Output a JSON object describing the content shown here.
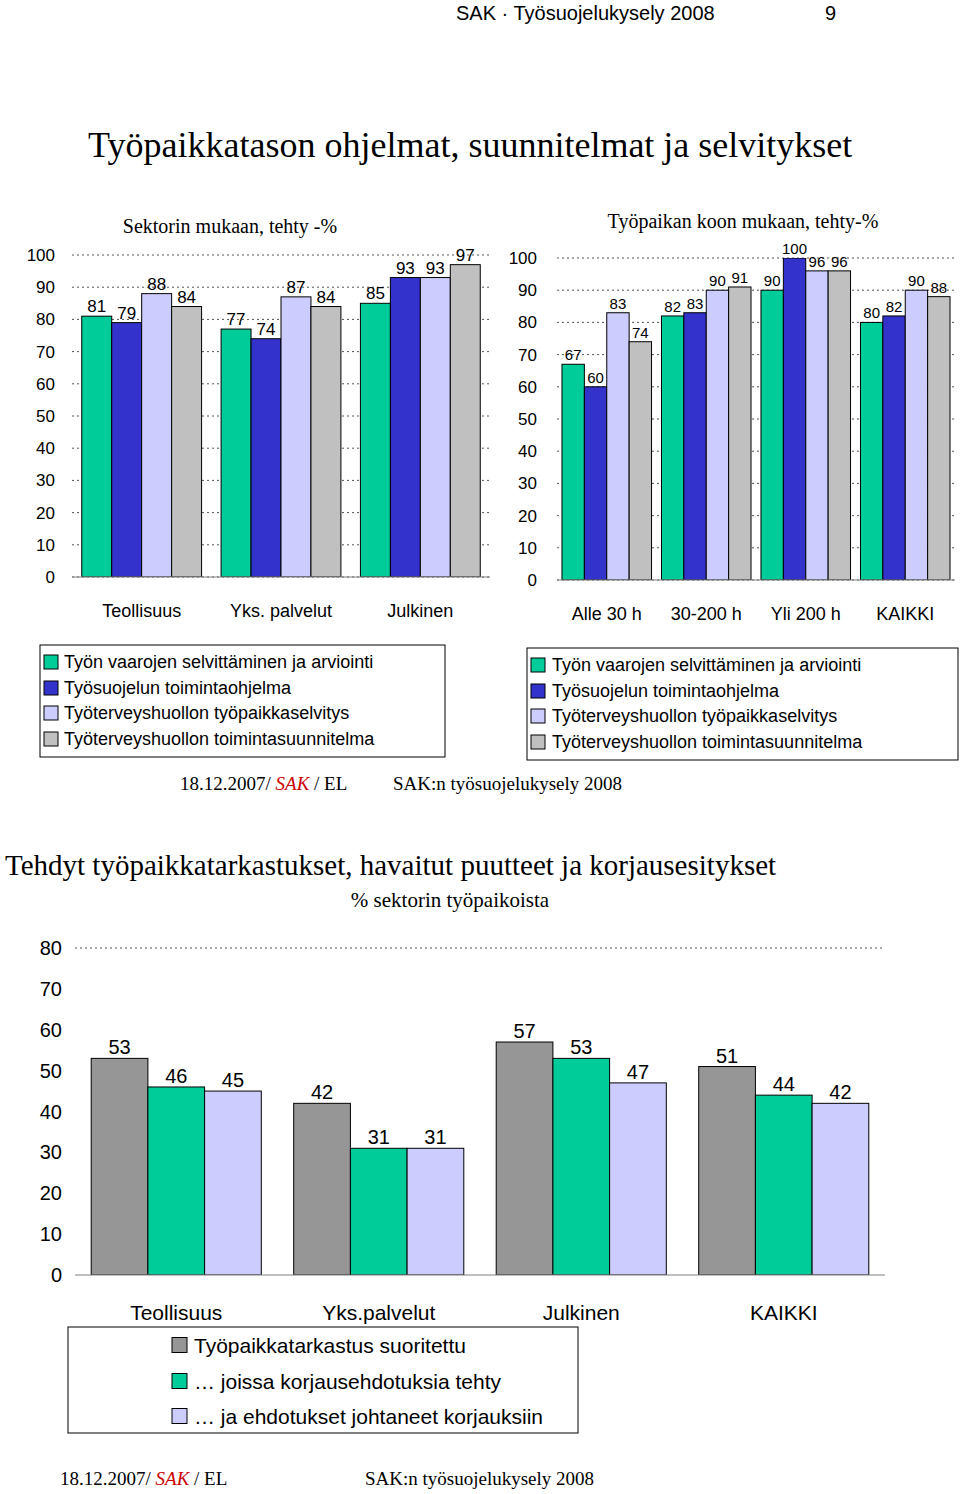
{
  "page": {
    "header": {
      "title": "SAK · Työsuojelukysely 2008",
      "page_number": "9"
    },
    "slides": [
      {
        "title": "Työpaikkatason ohjelmat, suunnitelmat ja selvitykset",
        "footer": {
          "date": "18.12.2007/",
          "org": "SAK",
          "author": "/ EL",
          "survey": "SAK:n työsuojelukysely 2008"
        }
      },
      {
        "footer": {
          "date": "18.12.2007/",
          "org": "SAK",
          "author": "/ EL",
          "survey": "SAK:n työsuojelukysely 2008"
        }
      }
    ]
  },
  "chart_data": [
    {
      "type": "bar",
      "title": "Sektorin mukaan, tehty -%",
      "categories": [
        "Teollisuus",
        "Yks. palvelut",
        "Julkinen"
      ],
      "series": [
        {
          "name": "Työn vaarojen selvittäminen ja arviointi",
          "color": "#00cc99",
          "values": [
            81,
            77,
            85
          ]
        },
        {
          "name": "Työsuojelun toimintaohjelma",
          "color": "#3333cc",
          "values": [
            79,
            74,
            93
          ]
        },
        {
          "name": "Työterveyshuollon työpaikkaselvitys",
          "color": "#ccccff",
          "values": [
            88,
            87,
            93
          ]
        },
        {
          "name": "Työterveyshuollon toimintasuunnitelma",
          "color": "#c0c0c0",
          "values": [
            84,
            84,
            97
          ]
        }
      ],
      "ylim": [
        0,
        100
      ],
      "yticks": [
        0,
        10,
        20,
        30,
        40,
        50,
        60,
        70,
        80,
        90,
        100
      ],
      "grid": true,
      "data_labels": true,
      "legend": "bottom"
    },
    {
      "type": "bar",
      "title": "Työpaikan koon mukaan, tehty-%",
      "categories": [
        "Alle 30 h",
        "30-200 h",
        "Yli 200 h",
        "KAIKKI"
      ],
      "series": [
        {
          "name": "Työn vaarojen selvittäminen ja arviointi",
          "color": "#00cc99",
          "values": [
            67,
            82,
            90,
            80
          ]
        },
        {
          "name": "Työsuojelun toimintaohjelma",
          "color": "#3333cc",
          "values": [
            60,
            83,
            100,
            82
          ]
        },
        {
          "name": "Työterveyshuollon työpaikkaselvitys",
          "color": "#ccccff",
          "values": [
            83,
            90,
            96,
            90
          ]
        },
        {
          "name": "Työterveyshuollon toimintasuunnitelma",
          "color": "#c0c0c0",
          "values": [
            74,
            91,
            96,
            88
          ]
        }
      ],
      "ylim": [
        0,
        100
      ],
      "yticks": [
        0,
        10,
        20,
        30,
        40,
        50,
        60,
        70,
        80,
        90,
        100
      ],
      "grid": true,
      "data_labels": true,
      "legend": "bottom"
    },
    {
      "type": "bar",
      "title": "Tehdyt työpaikkatarkastukset, havaitut puutteet ja korjausesitykset",
      "subtitle": "% sektorin työpaikoista",
      "categories": [
        "Teollisuus",
        "Yks.palvelut",
        "Julkinen",
        "KAIKKI"
      ],
      "series": [
        {
          "name": "Työpaikkatarkastus suoritettu",
          "color": "#969696",
          "values": [
            53,
            42,
            57,
            51
          ]
        },
        {
          "name": "… joissa korjausehdotuksia tehty",
          "color": "#00cc99",
          "values": [
            46,
            31,
            53,
            44
          ]
        },
        {
          "name": "… ja ehdotukset johtaneet korjauksiin",
          "color": "#ccccff",
          "values": [
            45,
            31,
            47,
            42
          ]
        }
      ],
      "ylim": [
        0,
        80
      ],
      "yticks": [
        0,
        10,
        20,
        30,
        40,
        50,
        60,
        70,
        80
      ],
      "grid": false,
      "data_labels": true,
      "legend": "bottom"
    }
  ]
}
